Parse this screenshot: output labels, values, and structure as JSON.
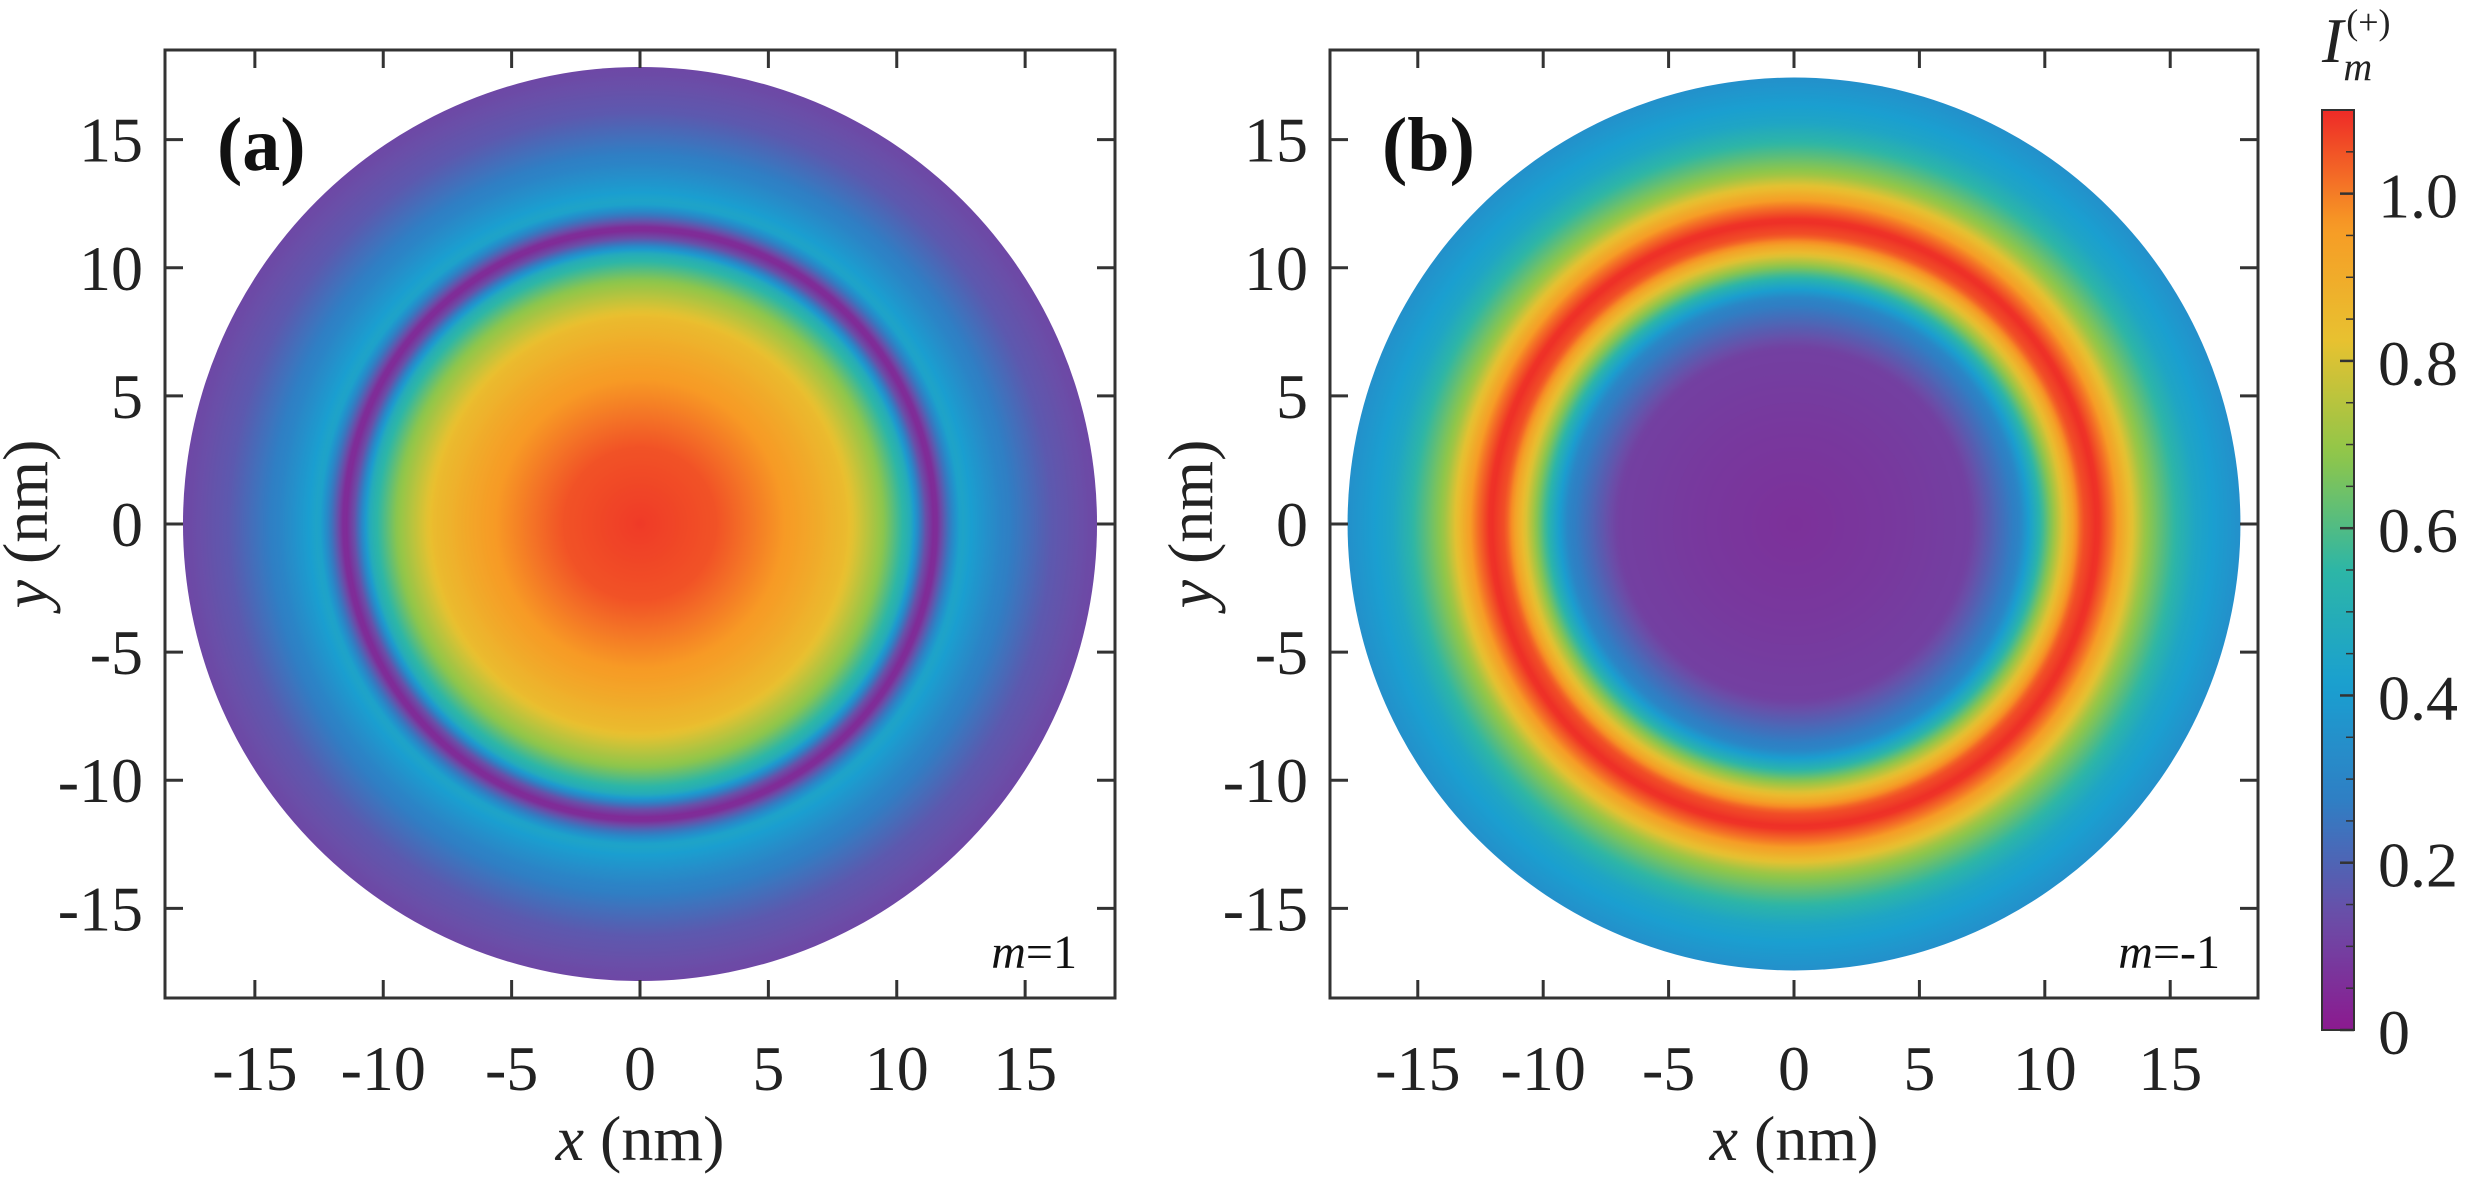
{
  "chart_data": [
    {
      "type": "heatmap",
      "panel": "(a)",
      "annotation_var": "m",
      "annotation_value": "=1",
      "xlabel_var": "x",
      "xlabel_unit": " (nm)",
      "ylabel_var": "y",
      "ylabel_unit": " (nm)",
      "xlim": [
        -18.5,
        18.5
      ],
      "ylim": [
        -18.5,
        18.5
      ],
      "xticks": [
        -15,
        -10,
        -5,
        0,
        5,
        10,
        15
      ],
      "yticks": [
        -15,
        -10,
        -5,
        0,
        5,
        10,
        15
      ],
      "disk_radius_nm": 17.8,
      "radial_profile": {
        "r_nm": [
          0,
          3,
          6,
          8,
          9.5,
          10.5,
          11.1,
          11.5,
          11.9,
          12.5,
          14,
          16,
          17.8
        ],
        "intensity": [
          1.08,
          1.05,
          0.95,
          0.85,
          0.68,
          0.5,
          0.15,
          0.02,
          0.2,
          0.45,
          0.3,
          0.17,
          0.12
        ]
      }
    },
    {
      "type": "heatmap",
      "panel": "(b)",
      "annotation_var": "m",
      "annotation_value": "=-1",
      "xlabel_var": "x",
      "xlabel_unit": " (nm)",
      "ylabel_var": "y",
      "ylabel_unit": " (nm)",
      "xlim": [
        -18.5,
        18.5
      ],
      "ylim": [
        -18.5,
        18.5
      ],
      "xticks": [
        -15,
        -10,
        -5,
        0,
        5,
        10,
        15
      ],
      "yticks": [
        -15,
        -10,
        -5,
        0,
        5,
        10,
        15
      ],
      "disk_radius_nm": 17.8,
      "radial_profile": {
        "r_nm": [
          0,
          4,
          7,
          9,
          10.5,
          11.5,
          12.1,
          12.7,
          14,
          16,
          17.8
        ],
        "intensity": [
          0.06,
          0.08,
          0.1,
          0.3,
          0.75,
          1.05,
          1.1,
          1.0,
          0.7,
          0.45,
          0.35
        ]
      }
    }
  ],
  "colorbar": {
    "label_symbol": "I",
    "label_sub": "m",
    "label_sup": "(+)",
    "range": [
      0,
      1.1
    ],
    "ticks": [
      {
        "value": 0,
        "label": "0"
      },
      {
        "value": 0.2,
        "label": "0.2"
      },
      {
        "value": 0.4,
        "label": "0.4"
      },
      {
        "value": 0.6,
        "label": "0.6"
      },
      {
        "value": 0.8,
        "label": "0.8"
      },
      {
        "value": 1.0,
        "label": "1.0"
      }
    ],
    "colors": [
      "#8b1a8f",
      "#6a4ea8",
      "#2f7fc4",
      "#1a9fd0",
      "#2db6a6",
      "#8ec64a",
      "#e8c130",
      "#f79a25",
      "#ee2a27"
    ]
  }
}
